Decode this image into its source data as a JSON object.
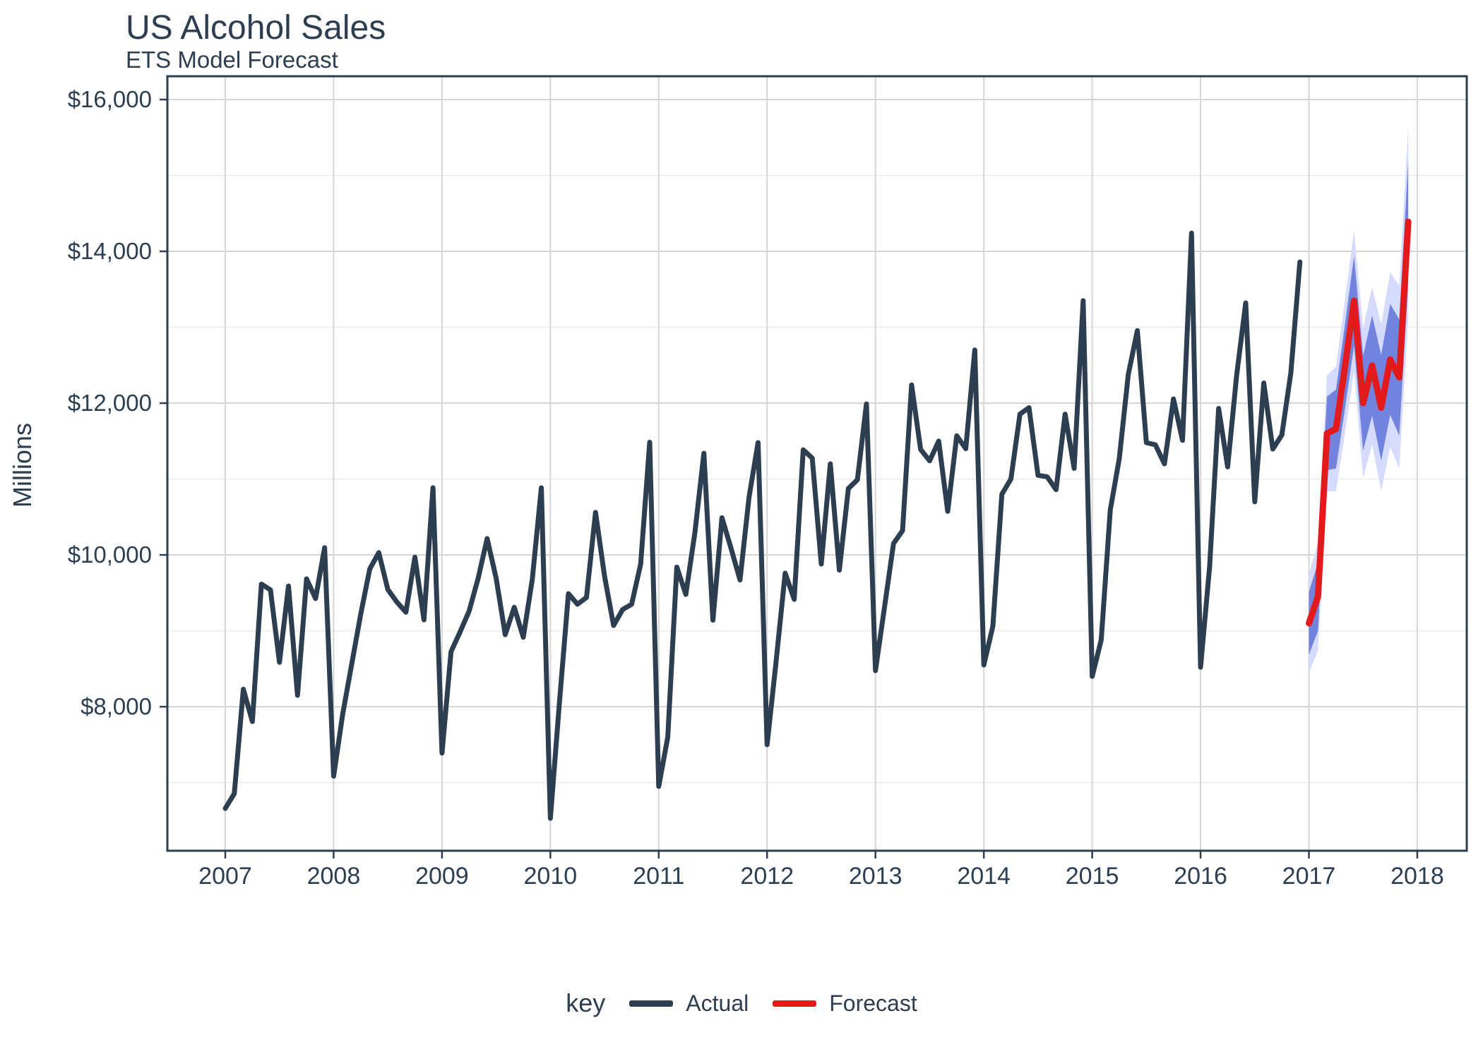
{
  "title": "US Alcohol Sales",
  "subtitle": "ETS Model Forecast",
  "y_axis": {
    "label": "Millions",
    "tick_labels": [
      "$16,000",
      "$14,000",
      "$12,000",
      "$10,000",
      "$8,000"
    ],
    "tick_values": [
      16000,
      14000,
      12000,
      10000,
      8000
    ],
    "minor_values": [
      15000,
      13000,
      11000,
      9000,
      7000
    ]
  },
  "x_axis": {
    "tick_labels": [
      "2007",
      "2008",
      "2009",
      "2010",
      "2011",
      "2012",
      "2013",
      "2014",
      "2015",
      "2016",
      "2017",
      "2018"
    ]
  },
  "legend": {
    "title": "key",
    "items": [
      {
        "label": "Actual",
        "color": "#2c3e50"
      },
      {
        "label": "Forecast",
        "color": "#e31a1c"
      }
    ]
  },
  "colors": {
    "text": "#2c3e50",
    "actual_line": "#2c3e50",
    "forecast_line": "#e31a1c",
    "band_80": "#596DD5",
    "band_95": "#D5DBFF",
    "grid_major": "#d6d6d6",
    "grid_minor": "#ebebeb",
    "panel_border": "#2c3e50"
  },
  "chart_data": {
    "type": "line",
    "title": "US Alcohol Sales",
    "subtitle": "ETS Model Forecast",
    "ylabel": "Millions",
    "xlabel": "",
    "ylim": [
      6100,
      16310
    ],
    "x_start": "2007-01",
    "x_end_actual": "2016-12",
    "x_end_forecast": "2017-12",
    "grid": "on",
    "legend_position": "bottom",
    "actual": {
      "name": "Actual",
      "values": [
        6660,
        6855,
        8230,
        7805,
        9615,
        9540,
        8585,
        9590,
        8150,
        9685,
        9425,
        10095,
        7085,
        7900,
        8560,
        9220,
        9815,
        10030,
        9545,
        9380,
        9245,
        9970,
        9145,
        10885,
        7390,
        8725,
        8985,
        9260,
        9690,
        10215,
        9690,
        8950,
        9310,
        8915,
        9680,
        10885,
        6530,
        8050,
        9490,
        9350,
        9440,
        10560,
        9720,
        9070,
        9280,
        9350,
        9880,
        11485,
        6950,
        7600,
        9840,
        9480,
        10290,
        11340,
        9140,
        10490,
        10090,
        9670,
        10760,
        11480,
        7500,
        8600,
        9760,
        9415,
        11385,
        11275,
        9880,
        11200,
        9800,
        10875,
        10990,
        11990,
        8475,
        9310,
        10150,
        10320,
        12240,
        11390,
        11240,
        11500,
        10575,
        11570,
        11400,
        12700,
        8550,
        9060,
        10800,
        11000,
        11855,
        11940,
        11050,
        11030,
        10860,
        11855,
        11140,
        13350,
        8400,
        8880,
        10590,
        11270,
        12380,
        12955,
        11480,
        11450,
        11200,
        12055,
        11510,
        14240,
        8520,
        9840,
        11930,
        11160,
        12370,
        13320,
        10700,
        12265,
        11395,
        11580,
        12400,
        13860
      ]
    },
    "forecast": {
      "name": "Forecast",
      "point": [
        9100,
        9450,
        11600,
        11660,
        12490,
        13350,
        12000,
        12495,
        11940,
        12575,
        12340,
        14390
      ],
      "lo80": [
        8685,
        9000,
        11115,
        11140,
        11935,
        12760,
        11375,
        11835,
        11245,
        11845,
        11575,
        13590
      ],
      "hi80": [
        9515,
        9900,
        12085,
        12180,
        13045,
        13940,
        12625,
        13155,
        12635,
        13305,
        13105,
        15190
      ],
      "lo95": [
        8445,
        8740,
        10835,
        10840,
        11615,
        12420,
        11015,
        11455,
        10845,
        11425,
        11135,
        13130
      ],
      "hi95": [
        9755,
        10160,
        12365,
        12480,
        13365,
        14280,
        12985,
        13535,
        13035,
        13725,
        13545,
        15650
      ]
    }
  }
}
